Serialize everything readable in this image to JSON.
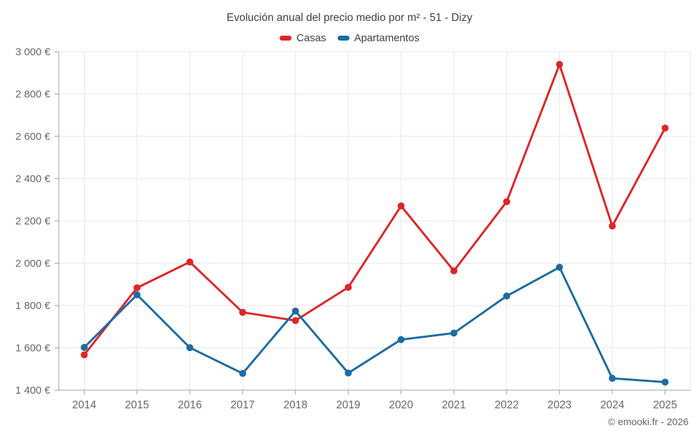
{
  "chart_data": {
    "type": "line",
    "title": "Evolución anual del precio medio por m² - 51 - Dizy",
    "categories": [
      "2014",
      "2015",
      "2016",
      "2017",
      "2018",
      "2019",
      "2020",
      "2021",
      "2022",
      "2023",
      "2024",
      "2025"
    ],
    "series": [
      {
        "name": "Casas",
        "color": "#e02427",
        "values": [
          1567,
          1884,
          2006,
          1768,
          1729,
          1886,
          2271,
          1964,
          2291,
          2940,
          2176,
          2639
        ]
      },
      {
        "name": "Apartamentos",
        "color": "#1a6ca3",
        "values": [
          1602,
          1851,
          1601,
          1479,
          1774,
          1481,
          1639,
          1670,
          1845,
          1981,
          1456,
          1438
        ]
      }
    ],
    "ylim": [
      1400,
      3000
    ],
    "y_tick_step": 200,
    "y_tick_suffix": " €",
    "grid": true,
    "legend_position": "top",
    "colors": {
      "grid": "#e7e7e7",
      "axis": "#9aa0a3",
      "tick_label": "#63686c"
    }
  },
  "footer": {
    "attribution": "© emooki.fr - 2026"
  }
}
